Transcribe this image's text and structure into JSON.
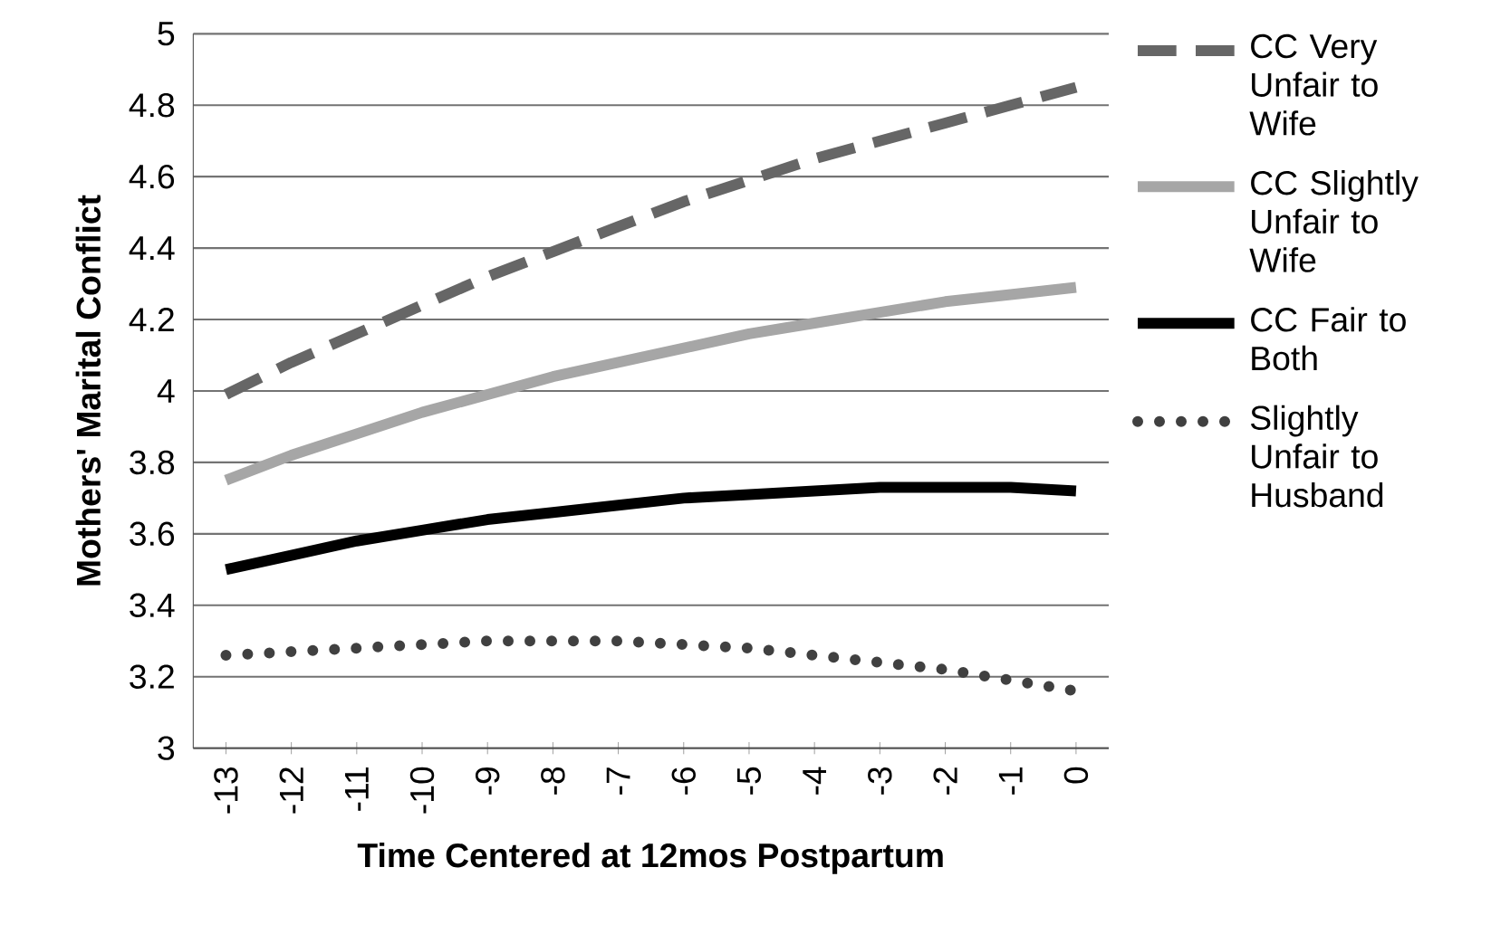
{
  "chart_data": {
    "type": "line",
    "xlabel": "Time Centered at 12mos Postpartum",
    "ylabel": "Mothers' Marital Conflict",
    "categories": [
      "-13",
      "-12",
      "-11",
      "-10",
      "-9",
      "-8",
      "-7",
      "-6",
      "-5",
      "-4",
      "-3",
      "-2",
      "-1",
      "0"
    ],
    "ylim": [
      3,
      5
    ],
    "yticks": [
      3,
      3.2,
      3.4,
      3.6,
      3.8,
      4,
      4.2,
      4.4,
      4.6,
      4.8,
      5
    ],
    "grid": "y",
    "legend": "right",
    "marker": "none",
    "series": [
      {
        "name": "CC Very Unfair to Wife",
        "color": "#666666",
        "line_style": "dashed",
        "values": [
          3.99,
          4.08,
          4.16,
          4.24,
          4.32,
          4.39,
          4.46,
          4.53,
          4.59,
          4.65,
          4.7,
          4.75,
          4.8,
          4.85
        ]
      },
      {
        "name": "CC Slightly Unfair to Wife",
        "color": "#a6a6a6",
        "line_style": "solid",
        "values": [
          3.75,
          3.82,
          3.88,
          3.94,
          3.99,
          4.04,
          4.08,
          4.12,
          4.16,
          4.19,
          4.22,
          4.25,
          4.27,
          4.29
        ]
      },
      {
        "name": "CC Fair to Both",
        "color": "#000000",
        "line_style": "solid",
        "values": [
          3.5,
          3.54,
          3.58,
          3.61,
          3.64,
          3.66,
          3.68,
          3.7,
          3.71,
          3.72,
          3.73,
          3.73,
          3.73,
          3.72
        ]
      },
      {
        "name": "Slightly Unfair to Husband",
        "color": "#404040",
        "line_style": "dotted",
        "values": [
          3.26,
          3.27,
          3.28,
          3.29,
          3.3,
          3.3,
          3.3,
          3.29,
          3.28,
          3.26,
          3.24,
          3.22,
          3.19,
          3.16
        ]
      }
    ]
  }
}
